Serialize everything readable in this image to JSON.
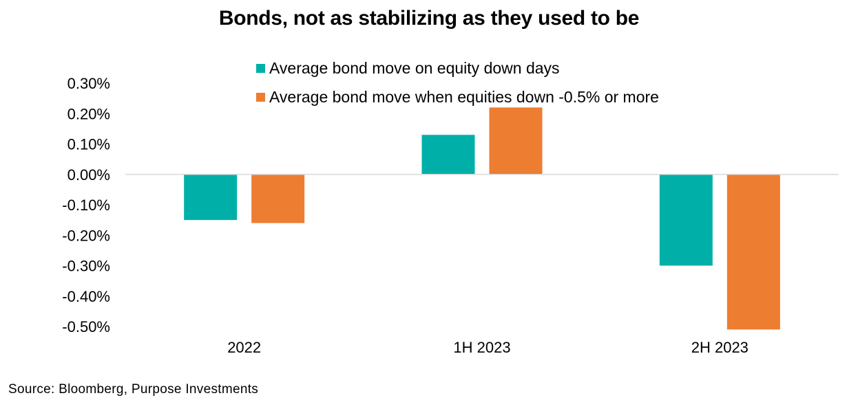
{
  "chart_data": {
    "type": "bar",
    "title": "Bonds, not as stabilizing as they used to be",
    "categories": [
      "2022",
      "1H 2023",
      "2H 2023"
    ],
    "series": [
      {
        "name": "Average bond move on equity down days",
        "color": "#00B0A8",
        "values": [
          -0.15,
          0.13,
          -0.3
        ]
      },
      {
        "name": "Average bond move when equities down -0.5% or more",
        "color": "#ED7D31",
        "values": [
          -0.16,
          0.22,
          -0.51
        ]
      }
    ],
    "yticks": [
      "0.30%",
      "0.20%",
      "0.10%",
      "0.00%",
      "-0.10%",
      "-0.20%",
      "-0.30%",
      "-0.40%",
      "-0.50%"
    ],
    "ytick_values": [
      0.3,
      0.2,
      0.1,
      0.0,
      -0.1,
      -0.2,
      -0.3,
      -0.4,
      -0.5
    ],
    "ylim": [
      -0.5,
      0.3
    ],
    "xlabel": "",
    "ylabel": "",
    "grid": false,
    "legend_position": "top"
  },
  "source": "Source: Bloomberg, Purpose Investments"
}
